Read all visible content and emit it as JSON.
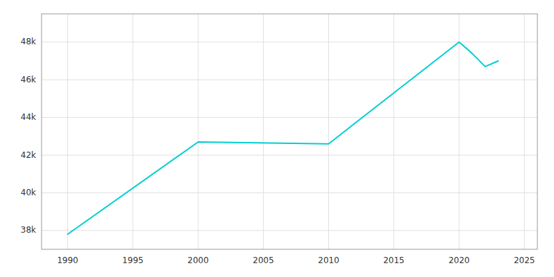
{
  "chart_data": {
    "type": "line",
    "x": [
      1990,
      2000,
      2010,
      2020,
      2021,
      2022,
      2023
    ],
    "values": [
      37800,
      42700,
      42600,
      48000,
      47400,
      46700,
      47000
    ],
    "color": "#00CED1",
    "xlim": [
      1988,
      2026
    ],
    "ylim": [
      37000,
      49500
    ],
    "xticks": [
      1990,
      1995,
      2000,
      2005,
      2010,
      2015,
      2020,
      2025
    ],
    "yticks": [
      {
        "value": 38000,
        "label": "38k"
      },
      {
        "value": 40000,
        "label": "40k"
      },
      {
        "value": 42000,
        "label": "42k"
      },
      {
        "value": 44000,
        "label": "44k"
      },
      {
        "value": 46000,
        "label": "46k"
      },
      {
        "value": 48000,
        "label": "48k"
      }
    ],
    "grid": true
  }
}
